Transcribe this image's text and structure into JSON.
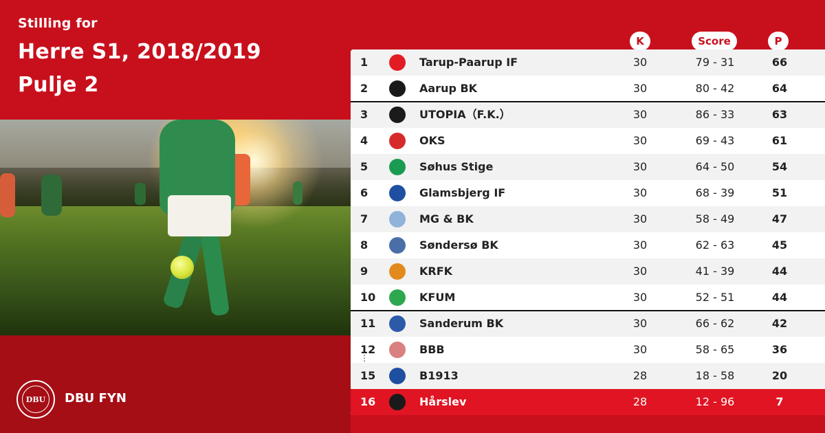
{
  "header": {
    "pre_title": "Stilling for",
    "title_line1": "Herre S1, 2018/2019",
    "title_line2": "Pulje 2"
  },
  "columns": {
    "k": "K",
    "score": "Score",
    "p": "P"
  },
  "brand": {
    "name": "DBU FYN",
    "logo_text": "DBU"
  },
  "colors": {
    "primary_red": "#c8101d",
    "dark_red": "#a50e15",
    "highlight_red": "#e01422"
  },
  "ellipsis": "⋮",
  "standings": [
    {
      "pos": "1",
      "team": "Tarup-Paarup IF",
      "k": "30",
      "score": "79 - 31",
      "p": "66",
      "crest_color": "#e31c24"
    },
    {
      "pos": "2",
      "team": "Aarup BK",
      "k": "30",
      "score": "80 - 42",
      "p": "64",
      "crest_color": "#1a1a1a"
    },
    {
      "pos": "3",
      "team": "UTOPIA（F.K.）",
      "k": "30",
      "score": "86 - 33",
      "p": "63",
      "crest_color": "#1b1b1b"
    },
    {
      "pos": "4",
      "team": "OKS",
      "k": "30",
      "score": "69 - 43",
      "p": "61",
      "crest_color": "#d72a2a"
    },
    {
      "pos": "5",
      "team": "Søhus Stige",
      "k": "30",
      "score": "64 - 50",
      "p": "54",
      "crest_color": "#1b9a52"
    },
    {
      "pos": "6",
      "team": "Glamsbjerg IF",
      "k": "30",
      "score": "68 - 39",
      "p": "51",
      "crest_color": "#1f4fa0"
    },
    {
      "pos": "7",
      "team": "MG & BK",
      "k": "30",
      "score": "58 - 49",
      "p": "47",
      "crest_color": "#8fb3d9"
    },
    {
      "pos": "8",
      "team": "Søndersø BK",
      "k": "30",
      "score": "62 - 63",
      "p": "45",
      "crest_color": "#4a6fa8"
    },
    {
      "pos": "9",
      "team": "KRFK",
      "k": "30",
      "score": "41 - 39",
      "p": "44",
      "crest_color": "#e38a1f"
    },
    {
      "pos": "10",
      "team": "KFUM",
      "k": "30",
      "score": "52 - 51",
      "p": "44",
      "crest_color": "#2ea84f"
    },
    {
      "pos": "11",
      "team": "Sanderum BK",
      "k": "30",
      "score": "66 - 62",
      "p": "42",
      "crest_color": "#2b5aa8"
    },
    {
      "pos": "12",
      "team": "BBB",
      "k": "30",
      "score": "58 - 65",
      "p": "36",
      "crest_color": "#d98080"
    },
    {
      "pos": "15",
      "team": "B1913",
      "k": "28",
      "score": "18 - 58",
      "p": "20",
      "crest_color": "#1f4fa0"
    },
    {
      "pos": "16",
      "team": "Hårslev",
      "k": "28",
      "score": "12 - 96",
      "p": "7",
      "crest_color": "#1a1a1a"
    }
  ]
}
